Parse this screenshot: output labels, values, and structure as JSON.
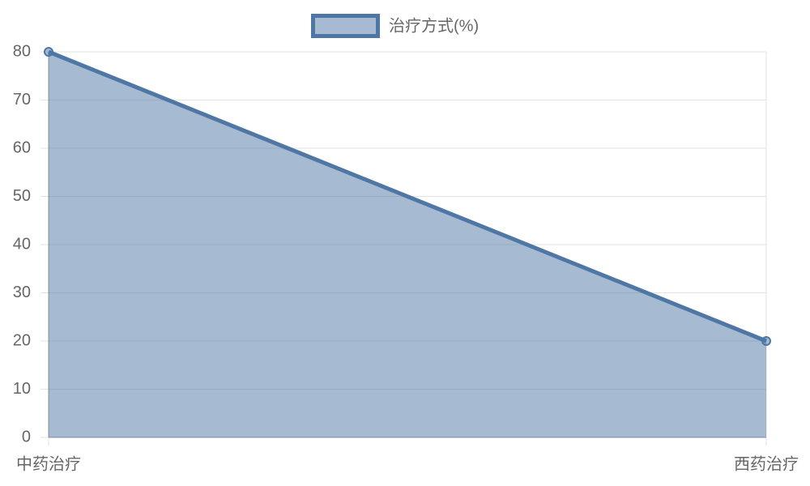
{
  "chart_data": {
    "type": "line",
    "fill": true,
    "categories": [
      "中药治疗",
      "西药治疗"
    ],
    "series": [
      {
        "name": "治疗方式(%)",
        "color": "#4e77a5",
        "values": [
          80,
          20
        ]
      }
    ],
    "ylim": [
      0,
      80
    ],
    "yticks": [
      0,
      10,
      20,
      30,
      40,
      50,
      60,
      70,
      80
    ],
    "grid": true,
    "legend": "top"
  }
}
